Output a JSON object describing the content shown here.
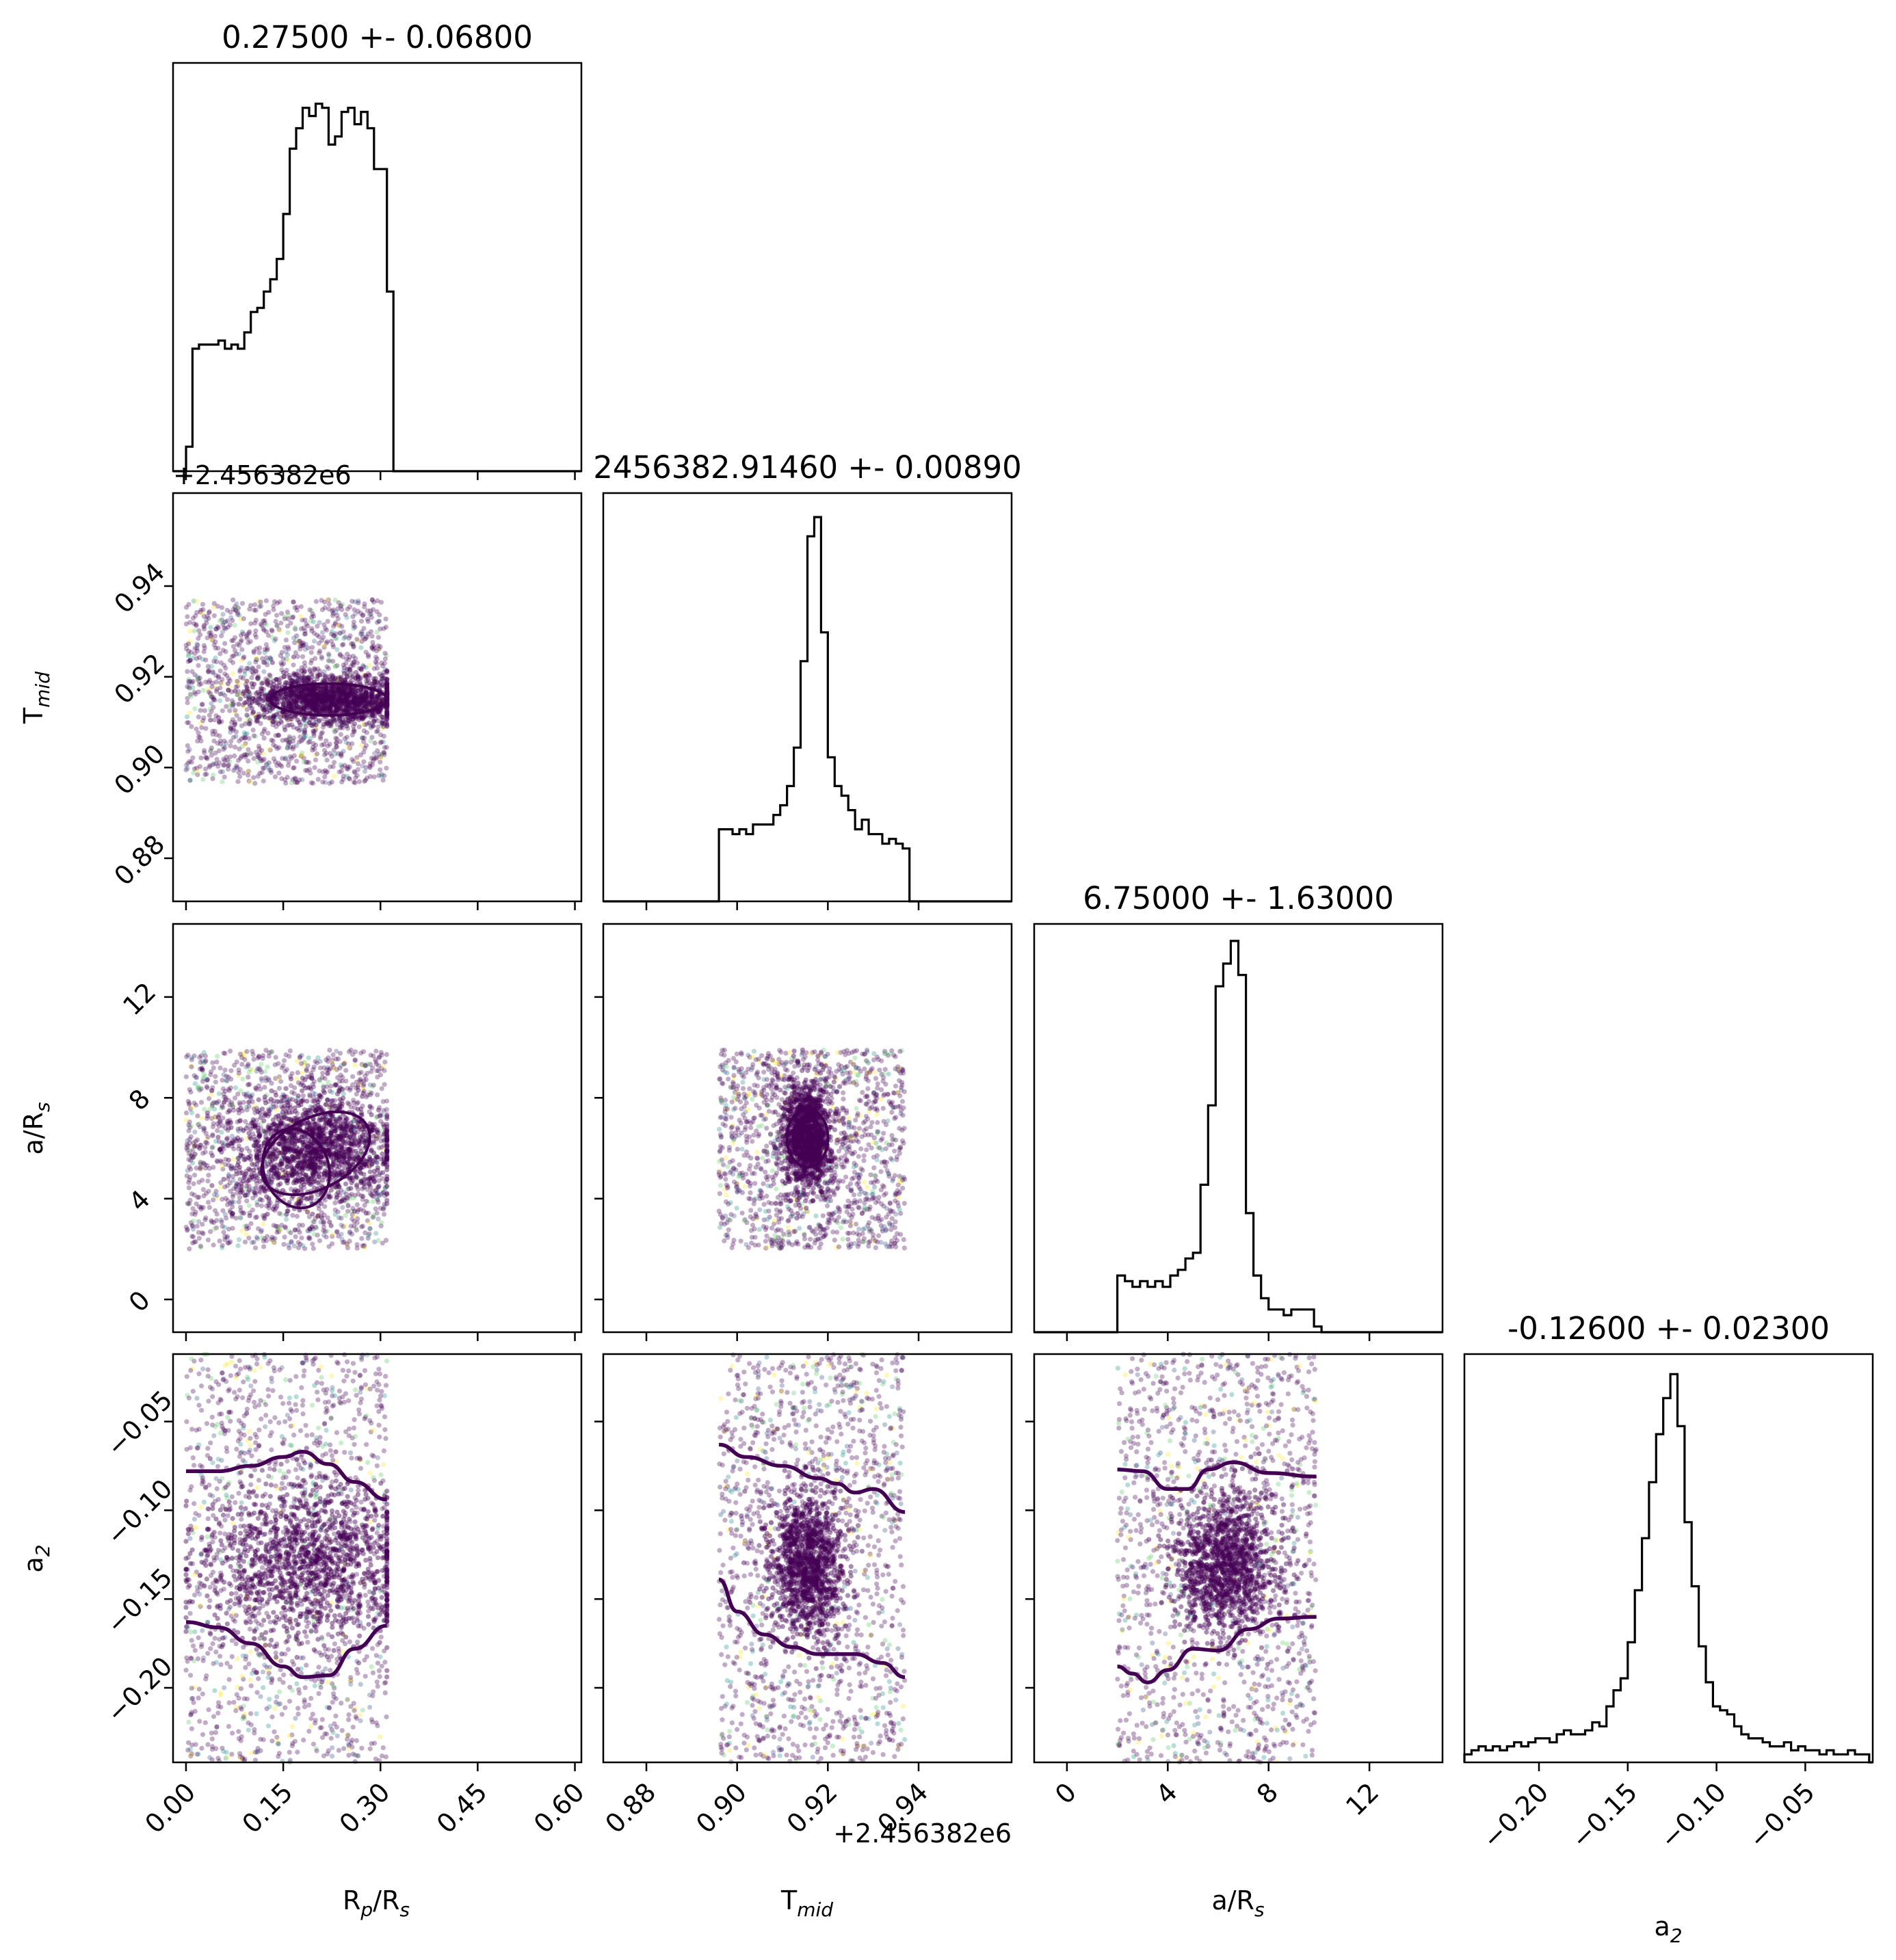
{
  "chart_data": {
    "type": "corner",
    "parameters": [
      {
        "key": "rp",
        "label": "R",
        "label_sub": "p",
        "label_suffix": "/R",
        "label_suffix_sub": "s",
        "title": "0.27500 +- 0.06800",
        "range": [
          -0.02,
          0.61
        ],
        "ticks": [
          0.0,
          0.15,
          0.3,
          0.45,
          0.6
        ],
        "tick_labels": [
          "0.00",
          "0.15",
          "0.30",
          "0.45",
          "0.60"
        ],
        "offset": ""
      },
      {
        "key": "tmid",
        "label": "T",
        "label_sub": "mid",
        "label_suffix": "",
        "label_suffix_sub": "",
        "title": "2456382.91460 +- 0.00890",
        "range": [
          0.8705,
          0.9605
        ],
        "ticks": [
          0.88,
          0.9,
          0.92,
          0.94
        ],
        "tick_labels": [
          "0.88",
          "0.90",
          "0.92",
          "0.94"
        ],
        "offset": "+2.456382e6"
      },
      {
        "key": "ars",
        "label": "a/R",
        "label_sub": "s",
        "label_suffix": "",
        "label_suffix_sub": "",
        "title": "6.75000 +- 1.63000",
        "range": [
          -1.3,
          14.9
        ],
        "ticks": [
          0,
          4,
          8,
          12
        ],
        "tick_labels": [
          "0",
          "4",
          "8",
          "12"
        ],
        "offset": ""
      },
      {
        "key": "a2",
        "label": "a",
        "label_sub": "2",
        "label_suffix": "",
        "label_suffix_sub": "",
        "title": "-0.12600 +- 0.02300",
        "range": [
          -0.242,
          -0.012
        ],
        "ticks": [
          -0.2,
          -0.15,
          -0.1,
          -0.05
        ],
        "tick_labels": [
          "−0.20",
          "−0.15",
          "−0.10",
          "−0.05"
        ],
        "offset": ""
      }
    ],
    "histograms": [
      {
        "param": "rp",
        "x": [
          0.0,
          0.01,
          0.02,
          0.03,
          0.04,
          0.05,
          0.06,
          0.07,
          0.08,
          0.09,
          0.1,
          0.11,
          0.12,
          0.13,
          0.14,
          0.15,
          0.16,
          0.17,
          0.18,
          0.19,
          0.2,
          0.21,
          0.22,
          0.23,
          0.24,
          0.25,
          0.26,
          0.27,
          0.28,
          0.29,
          0.3,
          0.31
        ],
        "counts": [
          6,
          30,
          31,
          31,
          31,
          32,
          30,
          31,
          30,
          34,
          39,
          40,
          44,
          47,
          52,
          63,
          79,
          84,
          89,
          87,
          90,
          89,
          80,
          82,
          88,
          89,
          85,
          88,
          84,
          74,
          74,
          44
        ],
        "ylim": [
          0,
          100
        ]
      },
      {
        "param": "tmid",
        "x": [
          0.896,
          0.8975,
          0.899,
          0.9005,
          0.902,
          0.9035,
          0.905,
          0.9065,
          0.908,
          0.9095,
          0.911,
          0.9125,
          0.914,
          0.9155,
          0.917,
          0.9185,
          0.92,
          0.9215,
          0.923,
          0.9245,
          0.926,
          0.9275,
          0.929,
          0.9305,
          0.932,
          0.9335,
          0.935,
          0.9365
        ],
        "counts": [
          15,
          15,
          14,
          15,
          14,
          16,
          16,
          16,
          18,
          20,
          24,
          32,
          50,
          76,
          80,
          56,
          30,
          24,
          22,
          19,
          15,
          17,
          14,
          14,
          12,
          13,
          12,
          11
        ],
        "ylim": [
          0,
          85
        ]
      },
      {
        "param": "ars",
        "x": [
          2.0,
          2.3,
          2.6,
          2.9,
          3.2,
          3.5,
          3.8,
          4.1,
          4.4,
          4.7,
          5.0,
          5.3,
          5.6,
          5.9,
          6.2,
          6.5,
          6.8,
          7.1,
          7.4,
          7.7,
          8.0,
          8.3,
          8.6,
          8.9,
          9.2,
          9.5,
          9.8
        ],
        "counts": [
          10,
          9,
          8,
          9,
          8,
          9,
          8,
          10,
          11,
          13,
          14,
          26,
          40,
          61,
          65,
          69,
          63,
          21,
          10,
          6,
          4,
          4,
          3,
          4,
          4,
          4,
          1
        ],
        "ylim": [
          0,
          72
        ]
      },
      {
        "param": "a2",
        "x": [
          -0.242,
          -0.238,
          -0.234,
          -0.23,
          -0.226,
          -0.222,
          -0.218,
          -0.214,
          -0.21,
          -0.206,
          -0.202,
          -0.198,
          -0.194,
          -0.19,
          -0.186,
          -0.182,
          -0.178,
          -0.174,
          -0.17,
          -0.166,
          -0.162,
          -0.158,
          -0.154,
          -0.15,
          -0.146,
          -0.142,
          -0.138,
          -0.134,
          -0.13,
          -0.126,
          -0.122,
          -0.118,
          -0.114,
          -0.11,
          -0.106,
          -0.102,
          -0.098,
          -0.094,
          -0.09,
          -0.086,
          -0.082,
          -0.078,
          -0.074,
          -0.07,
          -0.066,
          -0.062,
          -0.058,
          -0.054,
          -0.05,
          -0.046,
          -0.042,
          -0.038,
          -0.034,
          -0.03,
          -0.026,
          -0.022,
          -0.018
        ],
        "counts": [
          2,
          3,
          4,
          3,
          4,
          3,
          4,
          5,
          4,
          5,
          6,
          6,
          5,
          7,
          8,
          7,
          7,
          8,
          10,
          9,
          14,
          18,
          21,
          30,
          43,
          56,
          70,
          82,
          91,
          97,
          84,
          60,
          44,
          29,
          20,
          14,
          13,
          12,
          9,
          7,
          6,
          6,
          5,
          4,
          4,
          5,
          3,
          4,
          3,
          3,
          2,
          3,
          2,
          2,
          3,
          2,
          2
        ],
        "ylim": [
          0,
          102
        ]
      }
    ],
    "scatter_panels": [
      {
        "x": "rp",
        "y": "tmid",
        "x_extent": [
          0.0,
          0.31
        ],
        "y_extent": [
          0.8965,
          0.937
        ],
        "core_center": [
          0.22,
          0.915
        ],
        "core_spread": [
          0.06,
          0.0025
        ]
      },
      {
        "x": "rp",
        "y": "ars",
        "x_extent": [
          0.0,
          0.31
        ],
        "y_extent": [
          2.0,
          9.9
        ],
        "core_center": [
          0.2,
          6.0
        ],
        "core_spread": [
          0.06,
          1.0
        ]
      },
      {
        "x": "tmid",
        "y": "ars",
        "x_extent": [
          0.896,
          0.937
        ],
        "y_extent": [
          2.0,
          9.9
        ],
        "core_center": [
          0.9155,
          6.5
        ],
        "core_spread": [
          0.0025,
          1.0
        ]
      },
      {
        "x": "rp",
        "y": "a2",
        "x_extent": [
          0.0,
          0.31
        ],
        "y_extent": [
          -0.242,
          -0.012
        ],
        "core_center": [
          0.19,
          -0.128
        ],
        "core_spread": [
          0.08,
          0.022
        ]
      },
      {
        "x": "tmid",
        "y": "a2",
        "x_extent": [
          0.896,
          0.937
        ],
        "y_extent": [
          -0.242,
          -0.012
        ],
        "core_center": [
          0.9155,
          -0.131
        ],
        "core_spread": [
          0.004,
          0.02
        ]
      },
      {
        "x": "ars",
        "y": "a2",
        "x_extent": [
          2.0,
          9.9
        ],
        "y_extent": [
          -0.242,
          -0.012
        ],
        "core_center": [
          6.3,
          -0.13
        ],
        "core_spread": [
          1.0,
          0.02
        ]
      }
    ],
    "contours": [
      {
        "x": [
          0.0,
          0.05,
          0.1,
          0.15,
          0.18,
          0.22,
          0.26,
          0.31
        ],
        "y": [
          -0.078,
          -0.078,
          -0.075,
          -0.07,
          -0.067,
          -0.074,
          -0.084,
          -0.094
        ]
      },
      {
        "x": [
          0.0,
          0.05,
          0.1,
          0.15,
          0.18,
          0.22,
          0.26,
          0.31
        ],
        "y": [
          -0.163,
          -0.166,
          -0.175,
          -0.188,
          -0.194,
          -0.193,
          -0.178,
          -0.165
        ]
      },
      {
        "x": [
          0.896,
          0.902,
          0.91,
          0.918,
          0.922,
          0.926,
          0.93,
          0.937
        ],
        "y": [
          -0.063,
          -0.07,
          -0.075,
          -0.082,
          -0.085,
          -0.09,
          -0.088,
          -0.101
        ]
      },
      {
        "x": [
          0.896,
          0.9,
          0.906,
          0.912,
          0.918,
          0.926,
          0.932,
          0.937
        ],
        "y": [
          -0.139,
          -0.157,
          -0.17,
          -0.177,
          -0.181,
          -0.181,
          -0.186,
          -0.194
        ]
      },
      {
        "x": [
          2.0,
          3.0,
          4.0,
          4.8,
          5.6,
          6.6,
          8.0,
          9.9
        ],
        "y": [
          -0.077,
          -0.078,
          -0.088,
          -0.088,
          -0.077,
          -0.073,
          -0.079,
          -0.081
        ]
      },
      {
        "x": [
          2.0,
          2.6,
          3.2,
          4.0,
          5.0,
          6.0,
          7.2,
          8.4,
          9.9
        ],
        "y": [
          -0.188,
          -0.192,
          -0.197,
          -0.19,
          -0.178,
          -0.179,
          -0.167,
          -0.161,
          -0.16
        ]
      }
    ],
    "colormap": [
      "#440154",
      "#3b528b",
      "#21918c",
      "#5ec962",
      "#fde725"
    ],
    "grid": false
  }
}
